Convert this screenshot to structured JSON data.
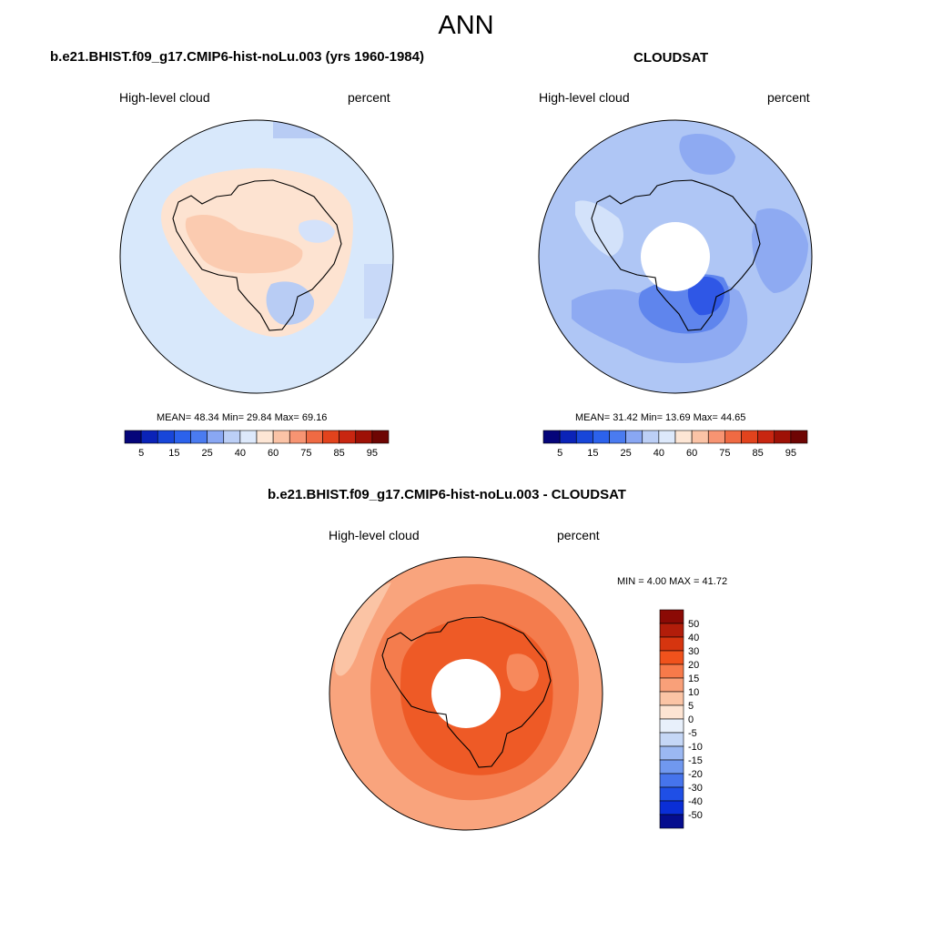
{
  "title": "ANN",
  "palette_cloud": [
    "#05057a",
    "#0b23b8",
    "#1846d9",
    "#2c62ec",
    "#4a7bf0",
    "#89a7f3",
    "#bccff6",
    "#dde9fb",
    "#fde6d5",
    "#fbc3a6",
    "#f79472",
    "#ef6a43",
    "#e2431d",
    "#c82611",
    "#9e1106",
    "#6e0503"
  ],
  "palette_diff": [
    "#8b0a05",
    "#b21d0a",
    "#d6350f",
    "#f0521c",
    "#f77a4a",
    "#f9a079",
    "#fbc4a5",
    "#fde4d3",
    "#e8f0fb",
    "#c5d7f6",
    "#9bb8f2",
    "#7098ef",
    "#4674ec",
    "#1f4fe6",
    "#0a2ed6",
    "#050d8e"
  ],
  "panels": [
    {
      "title": "b.e21.BHIST.f09_g17.CMIP6-hist-noLu.003 (yrs 1960-1984)",
      "left_label": "High-level cloud",
      "right_label": "percent",
      "stats": "MEAN=  48.34  Min=  29.84  Max=  69.16",
      "colorbar_ticks": [
        "5",
        "15",
        "25",
        "40",
        "60",
        "75",
        "85",
        "95"
      ],
      "map_colors": {
        "background": "#d8e8fb",
        "ice_region": "#fde3d1",
        "patch_high": "#fbcbb0",
        "patch_low": "#b8ccf4"
      }
    },
    {
      "title": "CLOUDSAT",
      "left_label": "High-level cloud",
      "right_label": "percent",
      "stats": "MEAN=  31.42  Min=  13.69  Max=  44.65",
      "colorbar_ticks": [
        "5",
        "15",
        "25",
        "40",
        "60",
        "75",
        "85",
        "95"
      ],
      "map_colors": {
        "background": "#afc6f5",
        "mid": "#8eaaf2",
        "low": "#5f85ed",
        "lowest": "#2f57e6",
        "peninsula": "#d3e2fa"
      }
    },
    {
      "title": "b.e21.BHIST.f09_g17.CMIP6-hist-noLu.003 - CLOUDSAT",
      "left_label": "High-level cloud",
      "right_label": "percent",
      "stats": "MIN =   4.00 MAX =  41.72",
      "colorbar_ticks": [
        "50",
        "40",
        "30",
        "20",
        "15",
        "10",
        "5",
        "0",
        "-5",
        "-10",
        "-15",
        "-20",
        "-30",
        "-40",
        "-50"
      ],
      "map_colors": {
        "outer": "#f9a47d",
        "mid": "#f47c4d",
        "inner": "#ee5a26",
        "light": "#fbc4a5"
      }
    }
  ]
}
